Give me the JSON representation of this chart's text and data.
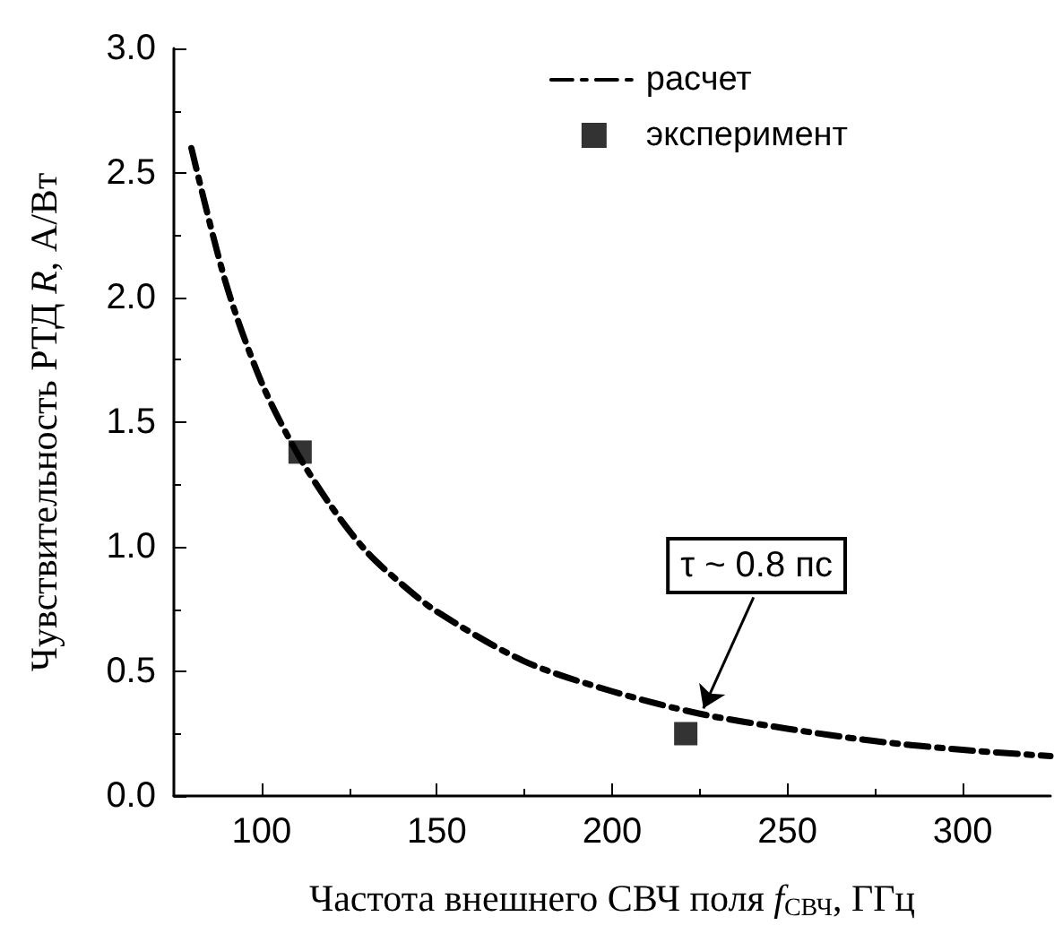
{
  "chart_data": {
    "type": "line",
    "xlabel": "Частота внешнего СВЧ поля f$_{СВЧ}$, ГГц",
    "ylabel": "Чувствительность РТД R, А/Вт",
    "series": [
      {
        "name": "расчет",
        "type": "line",
        "color": "#000000",
        "line_style": "dashed",
        "marker": "none",
        "x": [
          80,
          90,
          100,
          110,
          120,
          130,
          140,
          150,
          175,
          200,
          225,
          250,
          275,
          300,
          325
        ],
        "values": [
          2.6,
          2.05,
          1.66,
          1.38,
          1.16,
          0.98,
          0.85,
          0.74,
          0.54,
          0.42,
          0.33,
          0.27,
          0.22,
          0.185,
          0.16
        ]
      },
      {
        "name": "эксперимент",
        "type": "scatter",
        "color": "#000000",
        "marker": "square",
        "x": [
          111,
          221
        ],
        "values": [
          1.38,
          0.25
        ]
      }
    ],
    "annotations": [
      {
        "text": "τ ~ 0.8 пс",
        "x": 225,
        "y": 0.33
      }
    ],
    "xlim": [
      75,
      325
    ],
    "xticks": [
      100,
      150,
      200,
      250,
      300
    ],
    "ylim": [
      0,
      3
    ],
    "yticks": [
      {
        "value": 0,
        "label": "0.0"
      },
      0.5,
      {
        "value": 1,
        "label": "1.0"
      },
      1.5,
      {
        "value": 2,
        "label": "2.0"
      },
      2.5,
      {
        "value": 3,
        "label": "3.0"
      }
    ],
    "grid": false,
    "legend": "top right"
  }
}
